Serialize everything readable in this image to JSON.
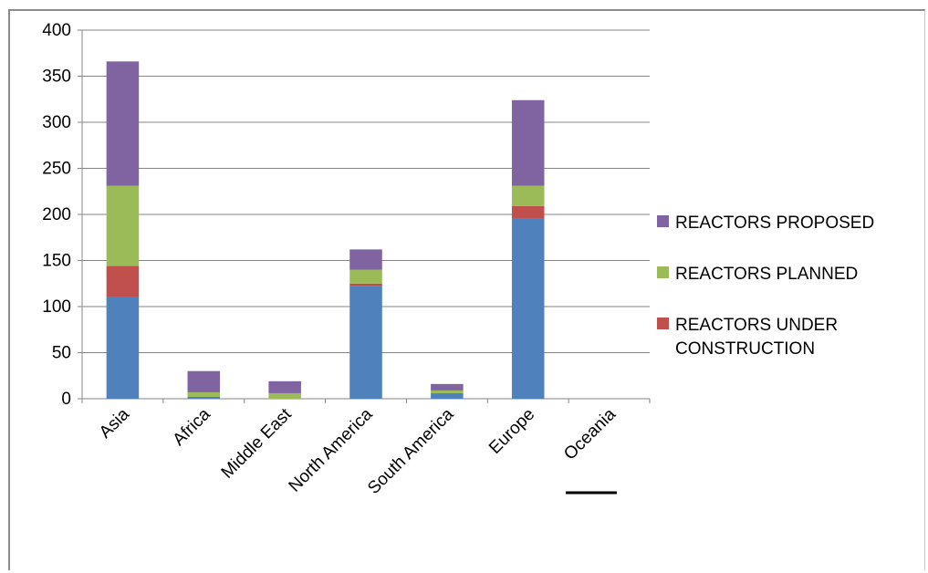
{
  "chart_data": {
    "type": "bar",
    "stacked": true,
    "categories": [
      "Asia",
      "Africa",
      "Middle East",
      "North America",
      "South America",
      "Europe",
      "Oceania"
    ],
    "series": [
      {
        "name": "",
        "color": "#4f81bd",
        "values": [
          110,
          2,
          0,
          122,
          6,
          196,
          0
        ]
      },
      {
        "name": "REACTORS UNDER CONSTRUCTION",
        "color": "#c0504d",
        "values": [
          34,
          0,
          0,
          3,
          0,
          13,
          0
        ]
      },
      {
        "name": "REACTORS PLANNED",
        "color": "#9bbb59",
        "values": [
          87,
          5,
          6,
          15,
          3,
          22,
          0
        ]
      },
      {
        "name": "REACTORS PROPOSED",
        "color": "#8064a2",
        "values": [
          135,
          23,
          13,
          22,
          7,
          93,
          0
        ]
      }
    ],
    "y_ticks": [
      "0",
      "50",
      "100",
      "150",
      "200",
      "250",
      "300",
      "350",
      "400"
    ],
    "ylim": [
      0,
      400
    ],
    "grid": true,
    "legend": {
      "placement": "right",
      "entries": [
        {
          "label": "REACTORS PROPOSED",
          "color": "#8064a2"
        },
        {
          "label": "REACTORS PLANNED",
          "color": "#9bbb59"
        },
        {
          "label": "REACTORS UNDER",
          "label2": "CONSTRUCTION",
          "color": "#c0504d"
        }
      ]
    },
    "title": "",
    "xlabel": "",
    "ylabel": ""
  }
}
